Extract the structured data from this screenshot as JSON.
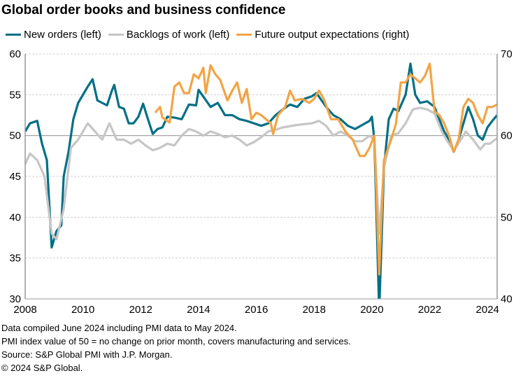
{
  "chart_data": {
    "type": "line",
    "title": "Global order books and business confidence",
    "legend_position": "top",
    "grid": true,
    "x_range": [
      "2008-01",
      "2024-05"
    ],
    "x_ticks": [
      "2008",
      "2010",
      "2012",
      "2014",
      "2016",
      "2018",
      "2020",
      "2022",
      "2024"
    ],
    "y_left": {
      "range": [
        30,
        60
      ],
      "ticks": [
        "30",
        "35",
        "40",
        "45",
        "50",
        "55",
        "60"
      ]
    },
    "y_right": {
      "range": [
        40,
        70
      ],
      "ticks": [
        "40",
        "50",
        "60",
        "70"
      ]
    },
    "reference_line_left": 50,
    "series": [
      {
        "name": "New orders (left)",
        "axis": "left",
        "color": "#006f86",
        "x": [
          "2008-01",
          "2008-03",
          "2008-06",
          "2008-08",
          "2008-10",
          "2008-12",
          "2009-02",
          "2009-04",
          "2009-05",
          "2009-07",
          "2009-09",
          "2009-11",
          "2010-01",
          "2010-03",
          "2010-05",
          "2010-07",
          "2010-09",
          "2010-11",
          "2011-01",
          "2011-02",
          "2011-04",
          "2011-06",
          "2011-08",
          "2011-10",
          "2011-12",
          "2012-02",
          "2012-04",
          "2012-06",
          "2012-08",
          "2012-10",
          "2012-12",
          "2013-03",
          "2013-06",
          "2013-09",
          "2013-12",
          "2014-01",
          "2014-06",
          "2014-09",
          "2014-12",
          "2015-03",
          "2015-06",
          "2015-09",
          "2015-12",
          "2016-03",
          "2016-06",
          "2016-09",
          "2016-12",
          "2017-03",
          "2017-06",
          "2017-09",
          "2017-12",
          "2018-02",
          "2018-06",
          "2018-09",
          "2018-12",
          "2019-03",
          "2019-06",
          "2019-09",
          "2019-12",
          "2020-01",
          "2020-02",
          "2020-04",
          "2020-05",
          "2020-06",
          "2020-08",
          "2020-10",
          "2020-12",
          "2021-03",
          "2021-05",
          "2021-07",
          "2021-09",
          "2021-12",
          "2022-03",
          "2022-05",
          "2022-07",
          "2022-09",
          "2022-11",
          "2023-01",
          "2023-03",
          "2023-05",
          "2023-07",
          "2023-09",
          "2023-11",
          "2024-01",
          "2024-03",
          "2024-05"
        ],
        "values": [
          50.5,
          51.5,
          51.8,
          49,
          47,
          36.3,
          38.3,
          39,
          45,
          48,
          52,
          54,
          55,
          56,
          56.9,
          54.3,
          54,
          53.7,
          55.5,
          56.2,
          53.5,
          53.3,
          51.5,
          51.5,
          52.3,
          53.9,
          52,
          50.2,
          50.8,
          51,
          52.3,
          52.2,
          52,
          53.8,
          53.7,
          55.6,
          53.5,
          54,
          52.5,
          52.5,
          52,
          51.8,
          51.5,
          51.2,
          51.5,
          52.5,
          53.2,
          53.8,
          53.5,
          54.5,
          54.8,
          55.2,
          53.5,
          52.5,
          52,
          51.2,
          50.8,
          51.3,
          51.8,
          52.3,
          49.5,
          28.5,
          37,
          46,
          52,
          53.3,
          53,
          55,
          58.8,
          55,
          54,
          54.2,
          53.5,
          52,
          50.5,
          49.5,
          48,
          49.5,
          51.5,
          53.5,
          52,
          50,
          49.5,
          51,
          51.8,
          52.5
        ]
      },
      {
        "name": "Backlogs of work (left)",
        "axis": "left",
        "color": "#c6c6c6",
        "x": [
          "2008-01",
          "2008-03",
          "2008-06",
          "2008-09",
          "2008-12",
          "2009-02",
          "2009-05",
          "2009-08",
          "2009-11",
          "2010-03",
          "2010-06",
          "2010-09",
          "2010-12",
          "2011-03",
          "2011-06",
          "2011-09",
          "2011-12",
          "2012-03",
          "2012-06",
          "2012-09",
          "2012-12",
          "2013-03",
          "2013-06",
          "2013-09",
          "2013-12",
          "2014-03",
          "2014-06",
          "2014-09",
          "2014-12",
          "2015-03",
          "2015-06",
          "2015-09",
          "2015-12",
          "2016-03",
          "2016-06",
          "2016-09",
          "2016-12",
          "2017-06",
          "2017-12",
          "2018-03",
          "2018-06",
          "2018-09",
          "2018-12",
          "2019-03",
          "2019-06",
          "2019-09",
          "2019-12",
          "2020-02",
          "2020-04",
          "2020-06",
          "2020-09",
          "2020-12",
          "2021-03",
          "2021-06",
          "2021-09",
          "2021-12",
          "2022-03",
          "2022-06",
          "2022-09",
          "2022-11",
          "2023-02",
          "2023-04",
          "2023-07",
          "2023-10",
          "2023-12",
          "2024-02",
          "2024-05"
        ],
        "values": [
          46.5,
          47.8,
          47,
          45,
          38,
          37.3,
          41,
          48.5,
          49.5,
          51.5,
          50.5,
          49.5,
          51.5,
          49.5,
          49.5,
          49,
          49.5,
          48.8,
          48.2,
          48.5,
          49,
          48.8,
          50,
          50.8,
          50.5,
          50,
          50.5,
          50.2,
          49.8,
          50,
          49.5,
          48.8,
          49.2,
          49.8,
          50.5,
          50.7,
          51,
          51.3,
          51.5,
          51.8,
          51.2,
          50,
          50.5,
          50,
          49.3,
          49.3,
          50,
          49.5,
          38,
          46,
          50,
          50.3,
          51.5,
          53.2,
          53.4,
          53.2,
          52.7,
          50.5,
          49,
          48.2,
          49.5,
          50.5,
          49.5,
          48.3,
          49,
          49,
          49.7
        ]
      },
      {
        "name": "Future output expectations (right)",
        "axis": "right",
        "color": "#f2a444",
        "x": [
          "2012-07",
          "2012-09",
          "2012-10",
          "2013-01",
          "2013-03",
          "2013-05",
          "2013-07",
          "2013-09",
          "2013-11",
          "2014-01",
          "2014-03",
          "2014-04",
          "2014-06",
          "2014-08",
          "2014-10",
          "2015-01",
          "2015-03",
          "2015-05",
          "2015-07",
          "2015-09",
          "2015-11",
          "2016-01",
          "2016-03",
          "2016-05",
          "2016-07",
          "2016-08",
          "2016-10",
          "2017-01",
          "2017-03",
          "2017-05",
          "2017-08",
          "2017-11",
          "2018-01",
          "2018-03",
          "2018-05",
          "2018-08",
          "2018-11",
          "2019-02",
          "2019-05",
          "2019-08",
          "2019-10",
          "2019-12",
          "2020-02",
          "2020-04",
          "2020-06",
          "2020-09",
          "2020-11",
          "2021-01",
          "2021-03",
          "2021-05",
          "2021-07",
          "2021-09",
          "2021-11",
          "2022-01",
          "2022-03",
          "2022-05",
          "2022-07",
          "2022-09",
          "2022-11",
          "2023-01",
          "2023-03",
          "2023-05",
          "2023-07",
          "2023-09",
          "2023-11",
          "2024-01",
          "2024-03",
          "2024-05"
        ],
        "values": [
          62.8,
          63.5,
          62.2,
          61.6,
          66,
          66.5,
          65.2,
          65.2,
          67.5,
          67,
          68.3,
          65.2,
          68.6,
          67.5,
          66.8,
          64.3,
          65.5,
          66.5,
          64,
          65.7,
          62,
          62.8,
          62.5,
          62,
          61.5,
          60.2,
          62.5,
          63.5,
          65.5,
          64.3,
          64.5,
          64,
          64.5,
          65.5,
          64.5,
          62,
          62,
          60.5,
          59.5,
          57.5,
          57.5,
          58.5,
          60,
          43,
          57,
          59.5,
          61.5,
          66.5,
          66.5,
          67.5,
          67,
          66.5,
          67.3,
          68.8,
          63,
          62.5,
          61.5,
          60,
          58,
          59.5,
          63.5,
          64.5,
          64,
          62.5,
          61.5,
          63.5,
          63.5,
          63.8
        ]
      }
    ]
  },
  "notes": [
    "Data compiled June 2024 including PMI data to May 2024.",
    "PMI index value of 50 = no change on prior month, covers manufacturing and services.",
    "Source: S&P Global PMI with J.P. Morgan.",
    "© 2024 S&P Global."
  ]
}
